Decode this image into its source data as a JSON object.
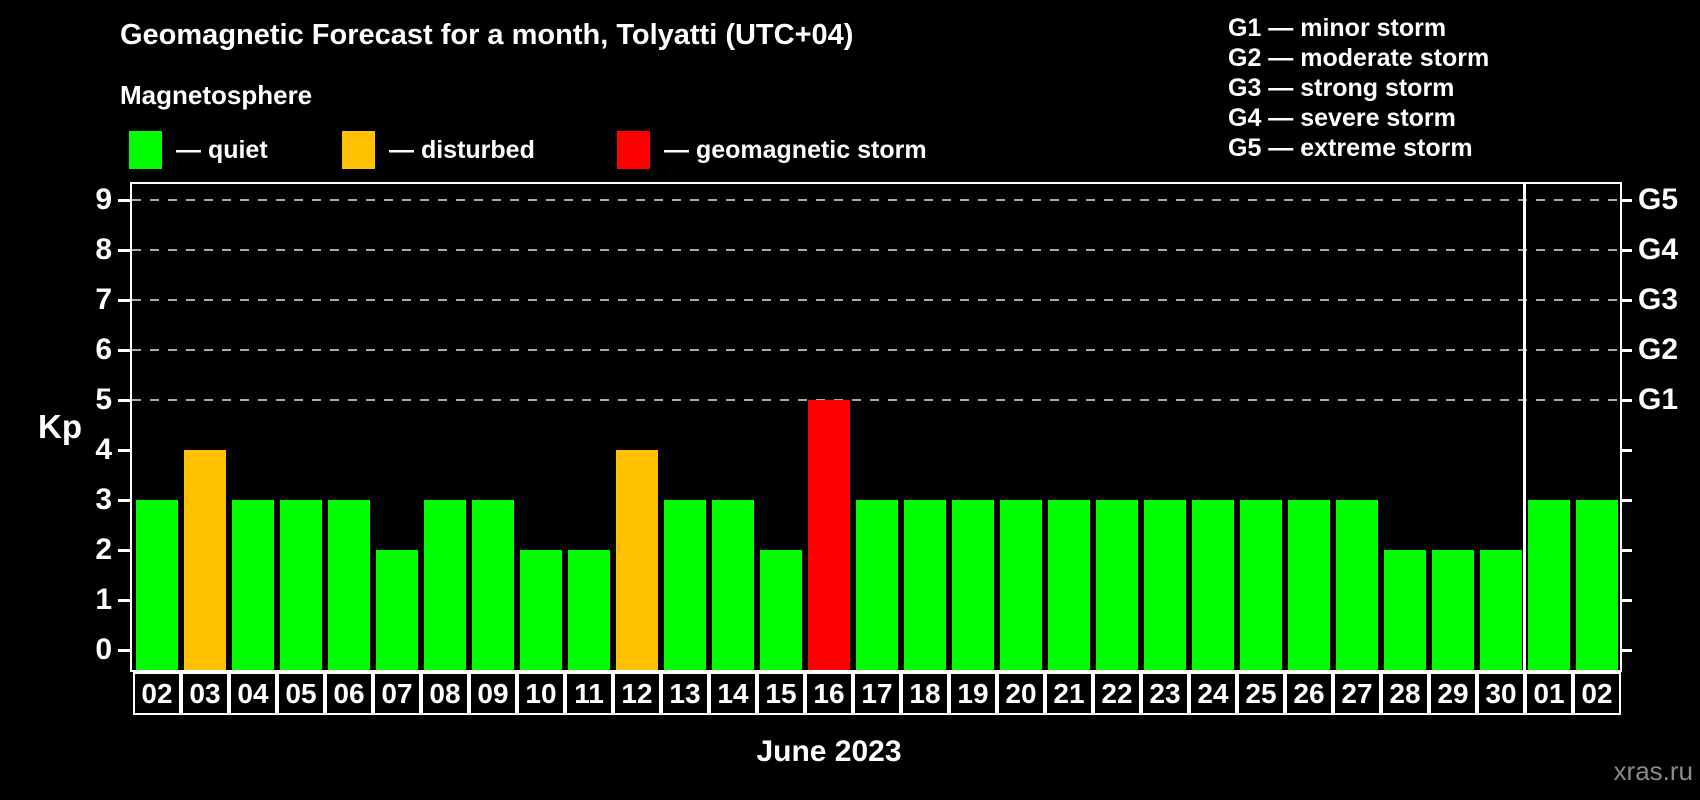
{
  "header": {
    "title": "Geomagnetic Forecast for a month, Tolyatti (UTC+04)",
    "subtitle": "Magnetosphere"
  },
  "legend": {
    "items": [
      {
        "key": "quiet",
        "label": "— quiet",
        "color": "#00ff00"
      },
      {
        "key": "disturbed",
        "label": "— disturbed",
        "color": "#ffc000"
      },
      {
        "key": "storm",
        "label": "— geomagnetic storm",
        "color": "#ff0000"
      }
    ]
  },
  "g_scale_legend": {
    "items": [
      "G1 — minor storm",
      "G2 — moderate storm",
      "G3 — strong storm",
      "G4 — severe storm",
      "G5 — extreme storm"
    ]
  },
  "chart_data": {
    "type": "bar",
    "title": "Geomagnetic Forecast for a month, Tolyatti (UTC+04)",
    "xlabel": "June 2023",
    "ylabel": "Kp",
    "ylim": [
      0,
      9
    ],
    "yticks": [
      0,
      1,
      2,
      3,
      4,
      5,
      6,
      7,
      8,
      9
    ],
    "grid": "horizontal dashed lines at Kp 5,6,7,8,9",
    "legend_position": "top",
    "categories": [
      "02",
      "03",
      "04",
      "05",
      "06",
      "07",
      "08",
      "09",
      "10",
      "11",
      "12",
      "13",
      "14",
      "15",
      "16",
      "17",
      "18",
      "19",
      "20",
      "21",
      "22",
      "23",
      "24",
      "25",
      "26",
      "27",
      "28",
      "29",
      "30",
      "01",
      "02"
    ],
    "values": [
      3,
      4,
      3,
      3,
      3,
      2,
      3,
      3,
      2,
      2,
      4,
      3,
      3,
      2,
      5,
      3,
      3,
      3,
      3,
      3,
      3,
      3,
      3,
      3,
      3,
      3,
      2,
      2,
      2,
      3,
      3
    ],
    "statuses": [
      "quiet",
      "disturbed",
      "quiet",
      "quiet",
      "quiet",
      "quiet",
      "quiet",
      "quiet",
      "quiet",
      "quiet",
      "disturbed",
      "quiet",
      "quiet",
      "quiet",
      "storm",
      "quiet",
      "quiet",
      "quiet",
      "quiet",
      "quiet",
      "quiet",
      "quiet",
      "quiet",
      "quiet",
      "quiet",
      "quiet",
      "quiet",
      "quiet",
      "quiet",
      "quiet",
      "quiet"
    ],
    "status_colors": {
      "quiet": "#00ff00",
      "disturbed": "#ffc000",
      "storm": "#ff0000"
    },
    "right_axis": [
      {
        "label": "G1",
        "kp": 5
      },
      {
        "label": "G2",
        "kp": 6
      },
      {
        "label": "G3",
        "kp": 7
      },
      {
        "label": "G4",
        "kp": 8
      },
      {
        "label": "G5",
        "kp": 9
      }
    ],
    "month_separator_after_index": 28
  },
  "footer": {
    "xaxis_title": "June 2023",
    "watermark": "xras.ru"
  }
}
